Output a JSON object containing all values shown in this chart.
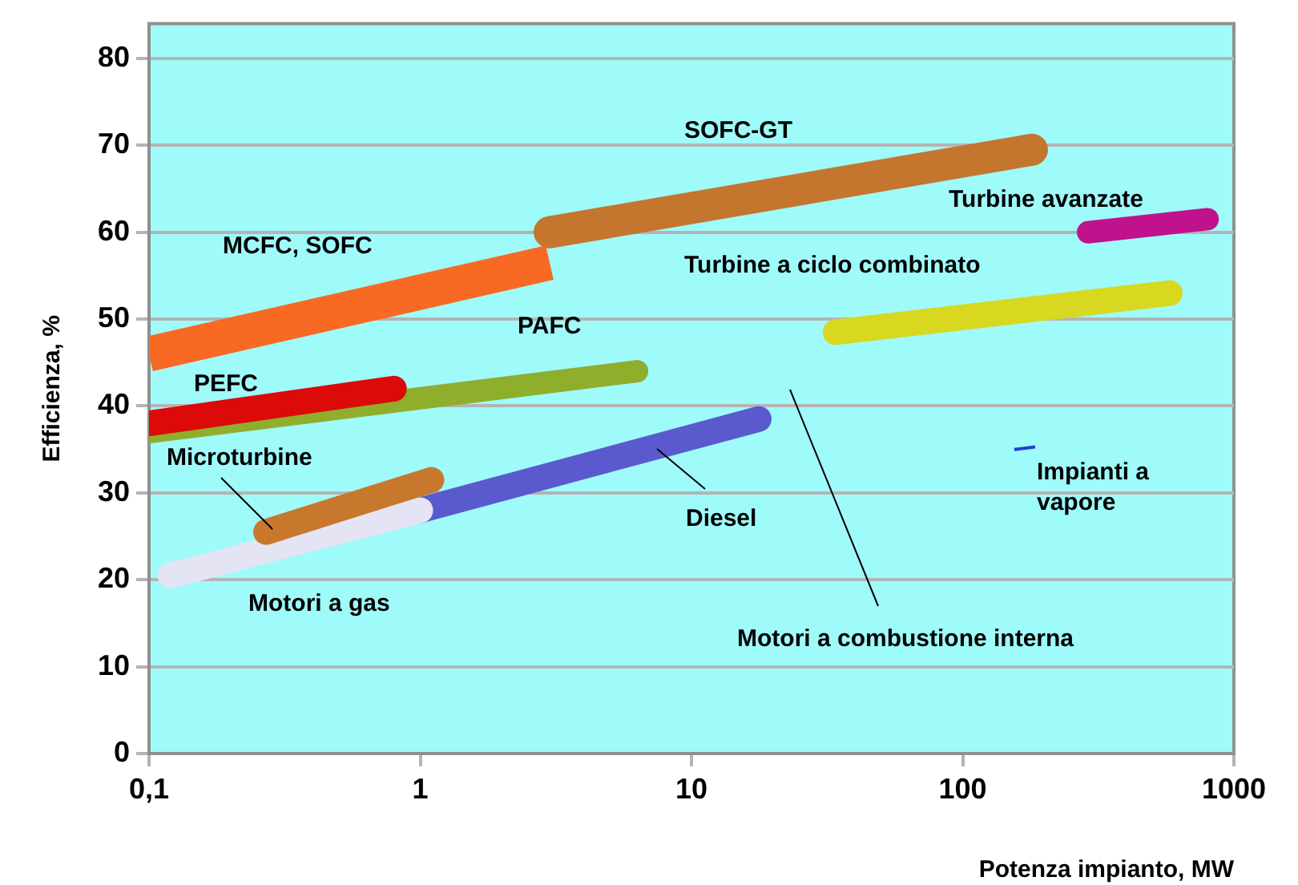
{
  "chart_data": {
    "type": "line",
    "xlabel": "Potenza impianto, MW",
    "ylabel": "Efficienza, %",
    "log": "x",
    "grid": "y",
    "legend": false,
    "xlim": [
      0.1,
      1000
    ],
    "xticks": [
      {
        "value": 0.1,
        "label": "0,1"
      },
      1,
      10,
      100,
      1000
    ],
    "ylim": [
      0,
      84
    ],
    "yticks": [
      0,
      10,
      20,
      30,
      40,
      50,
      60,
      70,
      80
    ],
    "series": [
      {
        "name": "MCFC, SOFC",
        "color": "#f86a24",
        "x": [
          0.1,
          3
        ],
        "values": [
          46,
          56.5
        ]
      },
      {
        "name": "SOFC-GT",
        "color": "#c4762e",
        "x": [
          3,
          180
        ],
        "values": [
          60,
          69.5
        ]
      },
      {
        "name": "PEFC",
        "color": "#dd0a0a",
        "x": [
          0.1,
          0.8
        ],
        "values": [
          38,
          42
        ]
      },
      {
        "name": "PAFC",
        "color": "#8fae2c",
        "x": [
          0.1,
          6.3
        ],
        "values": [
          37,
          44
        ]
      },
      {
        "name": "Microturbine",
        "color": "#c8782c",
        "x": [
          0.27,
          1.1
        ],
        "values": [
          25.5,
          31.5
        ]
      },
      {
        "name": "Motori a gas",
        "color": "#e4e4f4",
        "x": [
          0.12,
          1
        ],
        "values": [
          20.5,
          28
        ]
      },
      {
        "name": "Diesel",
        "color": "#5a5ace",
        "x": [
          1,
          17.7
        ],
        "values": [
          28,
          38.5
        ]
      },
      {
        "name": "Turbine a ciclo combinato",
        "color": "#d8d820",
        "x": [
          34,
          580
        ],
        "values": [
          48.5,
          53
        ]
      },
      {
        "name": "Turbine avanzate",
        "color": "#c0128c",
        "x": [
          290,
          800
        ],
        "values": [
          60,
          61.5
        ]
      },
      {
        "name": "Impianti a vapore",
        "color": "#2040d8",
        "x": [
          155,
          185
        ],
        "values": [
          35,
          35.3
        ]
      }
    ],
    "annotations": [
      "Motori a combustione interna"
    ]
  }
}
